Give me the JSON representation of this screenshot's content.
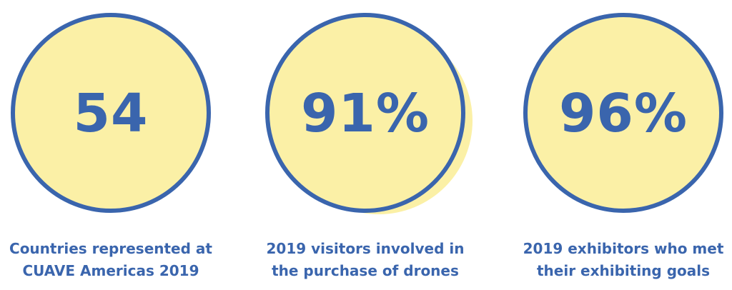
{
  "stats": [
    {
      "value": "54",
      "caption_line1": "Countries represented at",
      "caption_line2": "CUAVE Americas 2019"
    },
    {
      "value": "91%",
      "caption_line1": "2019 visitors involved in",
      "caption_line2": "the purchase of drones"
    },
    {
      "value": "96%",
      "caption_line1": "2019 exhibitors who met",
      "caption_line2": "their exhibiting goals"
    }
  ],
  "colors": {
    "accent": "#3a65ad",
    "circle_fill": "#fbf0a6",
    "background": "#ffffff"
  }
}
